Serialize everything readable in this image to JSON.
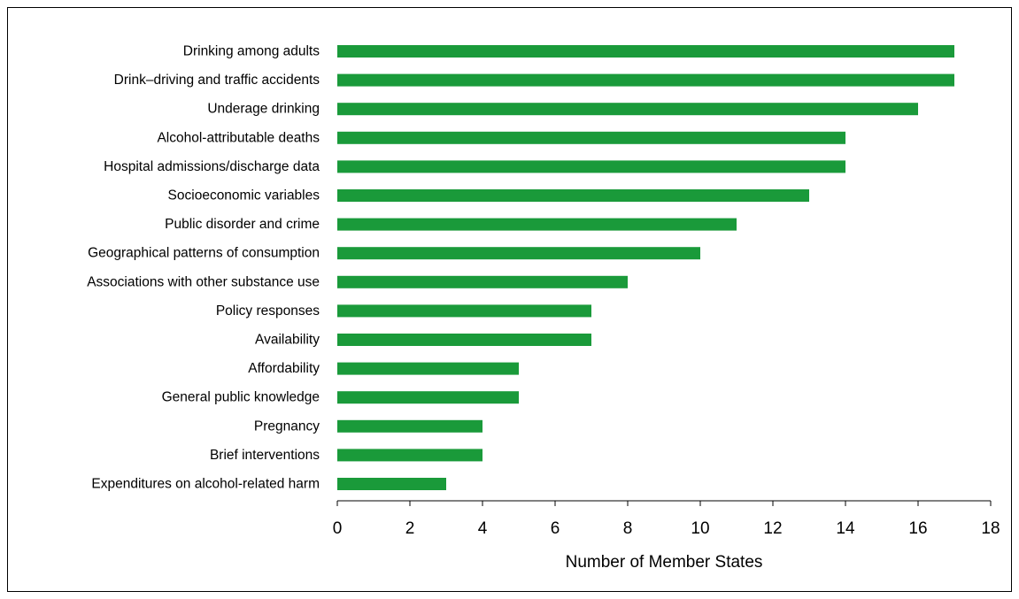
{
  "chart_data": {
    "type": "bar",
    "orientation": "horizontal",
    "title": "",
    "xlabel": "Number of Member States",
    "ylabel": "",
    "xlim": [
      0,
      18
    ],
    "xticks": [
      0,
      2,
      4,
      6,
      8,
      10,
      12,
      14,
      16,
      18
    ],
    "grid": false,
    "bar_color": "#1a9a3a",
    "categories": [
      "Drinking among adults",
      "Drink–driving and traffic accidents",
      "Underage drinking",
      "Alcohol-attributable deaths",
      "Hospital admissions/discharge data",
      "Socioeconomic variables",
      "Public disorder and crime",
      "Geographical patterns of consumption",
      "Associations with other substance use",
      "Policy responses",
      "Availability",
      "Affordability",
      "General public knowledge",
      "Pregnancy",
      "Brief interventions",
      "Expenditures on alcohol-related harm"
    ],
    "values": [
      17,
      17,
      16,
      14,
      14,
      13,
      11,
      10,
      8,
      7,
      7,
      5,
      5,
      4,
      4,
      3
    ]
  }
}
